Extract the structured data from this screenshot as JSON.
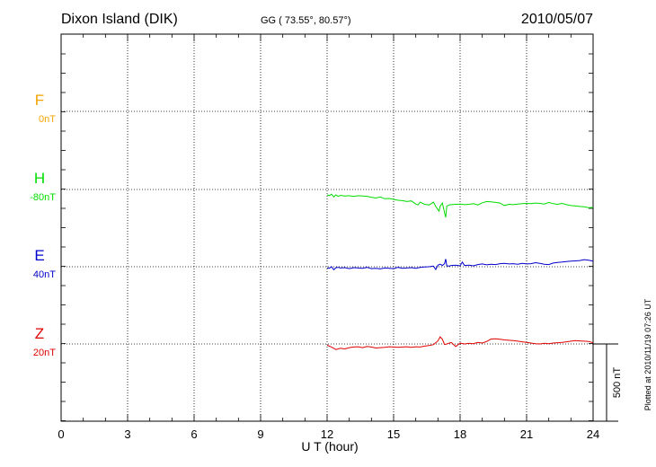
{
  "chart_data": {
    "type": "line",
    "title": "Dixon Island (DIK)",
    "coords": "GG ( 73.55°,  80.57°)",
    "date": "2010/05/07",
    "xlabel": "U T (hour)",
    "xlim": [
      0,
      24
    ],
    "xticks": [
      0,
      3,
      6,
      9,
      12,
      15,
      18,
      21,
      24
    ],
    "grid": true,
    "scale_bar": "500 nT",
    "plotted_note": "Plotted at 2010/11/19 07:26 UT",
    "series": [
      {
        "name": "F",
        "baseline": "0nT",
        "color": "#f5a300",
        "x": [],
        "y": []
      },
      {
        "name": "H",
        "baseline": "-80nT",
        "color": "#00dd00",
        "x": [
          12.0,
          12.1,
          12.2,
          12.3,
          12.4,
          12.5,
          12.6,
          12.8,
          13.0,
          13.2,
          13.4,
          13.6,
          13.8,
          14.0,
          14.2,
          14.4,
          14.6,
          14.8,
          15.0,
          15.2,
          15.4,
          15.6,
          15.8,
          16.0,
          16.1,
          16.2,
          16.4,
          16.6,
          16.8,
          16.9,
          17.0,
          17.05,
          17.1,
          17.2,
          17.3,
          17.35,
          17.4,
          17.5,
          17.6,
          17.8,
          18.0,
          18.2,
          18.4,
          18.6,
          18.8,
          19.0,
          19.2,
          19.4,
          19.6,
          19.8,
          20.0,
          20.2,
          20.4,
          20.6,
          20.8,
          21.0,
          21.2,
          21.4,
          21.6,
          21.8,
          22.0,
          22.2,
          22.4,
          22.6,
          22.8,
          23.0,
          23.2,
          23.4,
          23.6,
          23.8,
          24.0
        ],
        "y": [
          -35,
          -40,
          -30,
          -48,
          -35,
          -45,
          -38,
          -42,
          -40,
          -45,
          -40,
          -42,
          -44,
          -50,
          -55,
          -48,
          -60,
          -58,
          -64,
          -70,
          -72,
          -78,
          -74,
          -94,
          -100,
          -82,
          -96,
          -100,
          -82,
          -110,
          -130,
          -140,
          -108,
          -88,
          -150,
          -180,
          -108,
          -100,
          -98,
          -96,
          -94,
          -98,
          -96,
          -92,
          -100,
          -86,
          -78,
          -80,
          -84,
          -88,
          -104,
          -96,
          -98,
          -94,
          -92,
          -90,
          -92,
          -88,
          -90,
          -94,
          -84,
          -92,
          -96,
          -90,
          -98,
          -104,
          -106,
          -110,
          -112,
          -118,
          -116
        ]
      },
      {
        "name": "E",
        "baseline": "40nT",
        "color": "#0000cc",
        "x": [
          12.0,
          12.1,
          12.2,
          12.3,
          12.4,
          12.5,
          12.6,
          12.8,
          13.0,
          13.2,
          13.4,
          13.6,
          13.8,
          14.0,
          14.2,
          14.4,
          14.6,
          14.8,
          15.0,
          15.2,
          15.4,
          15.6,
          15.8,
          16.0,
          16.2,
          16.4,
          16.6,
          16.8,
          16.9,
          17.0,
          17.1,
          17.2,
          17.3,
          17.35,
          17.4,
          17.5,
          17.6,
          17.8,
          18.0,
          18.1,
          18.2,
          18.4,
          18.6,
          18.8,
          19.0,
          19.2,
          19.4,
          19.6,
          19.8,
          20.0,
          20.2,
          20.4,
          20.6,
          20.8,
          21.0,
          21.2,
          21.4,
          21.6,
          21.8,
          22.0,
          22.2,
          22.4,
          22.6,
          22.8,
          23.0,
          23.2,
          23.4,
          23.6,
          23.8,
          24.0
        ],
        "y": [
          -8,
          -10,
          0,
          -20,
          -6,
          -4,
          -8,
          -6,
          -12,
          -6,
          -8,
          -10,
          -4,
          -12,
          -10,
          -14,
          -8,
          -10,
          -12,
          -4,
          -10,
          -8,
          -6,
          -10,
          -4,
          -2,
          0,
          4,
          -18,
          10,
          16,
          8,
          20,
          50,
          6,
          4,
          8,
          10,
          6,
          30,
          8,
          10,
          6,
          14,
          18,
          12,
          16,
          14,
          20,
          22,
          18,
          20,
          16,
          22,
          18,
          20,
          26,
          22,
          16,
          14,
          24,
          28,
          30,
          34,
          36,
          38,
          40,
          46,
          42,
          36
        ]
      },
      {
        "name": "Z",
        "baseline": "20nT",
        "color": "#e00000",
        "x": [
          12.0,
          12.2,
          12.4,
          12.6,
          12.8,
          13.0,
          13.2,
          13.4,
          13.6,
          13.8,
          14.0,
          14.2,
          14.4,
          14.6,
          14.8,
          15.0,
          15.2,
          15.4,
          15.6,
          15.8,
          16.0,
          16.2,
          16.4,
          16.6,
          16.8,
          17.0,
          17.1,
          17.2,
          17.3,
          17.4,
          17.6,
          17.8,
          18.0,
          18.2,
          18.4,
          18.6,
          18.8,
          19.0,
          19.2,
          19.4,
          19.6,
          19.8,
          20.0,
          20.2,
          20.4,
          20.6,
          20.8,
          21.0,
          21.2,
          21.4,
          21.6,
          21.8,
          22.0,
          22.2,
          22.4,
          22.6,
          22.8,
          23.0,
          23.2,
          23.4,
          23.6,
          23.8,
          24.0
        ],
        "y": [
          -8,
          -20,
          -36,
          -28,
          -32,
          -24,
          -20,
          -18,
          -24,
          -16,
          -20,
          -26,
          -24,
          -22,
          -18,
          -20,
          -22,
          -20,
          -18,
          -22,
          -18,
          -20,
          -14,
          -10,
          -4,
          20,
          46,
          30,
          -4,
          0,
          10,
          -16,
          6,
          0,
          4,
          2,
          10,
          6,
          16,
          32,
          34,
          30,
          26,
          24,
          22,
          18,
          14,
          10,
          6,
          2,
          0,
          4,
          2,
          6,
          8,
          10,
          14,
          18,
          22,
          20,
          18,
          16,
          8
        ]
      }
    ]
  }
}
